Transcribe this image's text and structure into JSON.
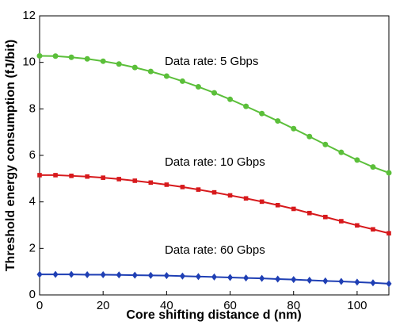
{
  "chart_data": {
    "type": "line",
    "xlabel": "Core shifting distance d (nm)",
    "ylabel": "Threshold energy consumption (fJ/bit)",
    "x": [
      0,
      5,
      10,
      15,
      20,
      25,
      30,
      35,
      40,
      45,
      50,
      55,
      60,
      65,
      70,
      75,
      80,
      85,
      90,
      95,
      100,
      105,
      110
    ],
    "xlim": [
      0,
      110
    ],
    "xticks": [
      0,
      20,
      40,
      60,
      80,
      100
    ],
    "ylim": [
      0,
      12
    ],
    "yticks": [
      0,
      2,
      4,
      6,
      8,
      10,
      12
    ],
    "series": [
      {
        "name": "Data rate: 5 Gbps",
        "color": "#5bbf3a",
        "marker": "circle",
        "values": [
          10.28,
          10.27,
          10.22,
          10.15,
          10.05,
          9.93,
          9.78,
          9.61,
          9.41,
          9.19,
          8.95,
          8.69,
          8.41,
          8.11,
          7.8,
          7.48,
          7.15,
          6.81,
          6.47,
          6.13,
          5.8,
          5.5,
          5.25
        ]
      },
      {
        "name": "Data rate: 10 Gbps",
        "color": "#d7191c",
        "marker": "square",
        "values": [
          5.15,
          5.15,
          5.12,
          5.09,
          5.04,
          4.98,
          4.91,
          4.83,
          4.74,
          4.64,
          4.53,
          4.41,
          4.28,
          4.15,
          4.01,
          3.86,
          3.7,
          3.52,
          3.35,
          3.17,
          2.99,
          2.82,
          2.65
        ]
      },
      {
        "name": "Data rate: 60 Gbps",
        "color": "#1f3fb4",
        "marker": "diamond",
        "values": [
          0.88,
          0.88,
          0.88,
          0.87,
          0.87,
          0.86,
          0.85,
          0.84,
          0.83,
          0.81,
          0.79,
          0.77,
          0.75,
          0.73,
          0.71,
          0.68,
          0.66,
          0.63,
          0.6,
          0.58,
          0.55,
          0.52,
          0.48
        ]
      }
    ]
  }
}
